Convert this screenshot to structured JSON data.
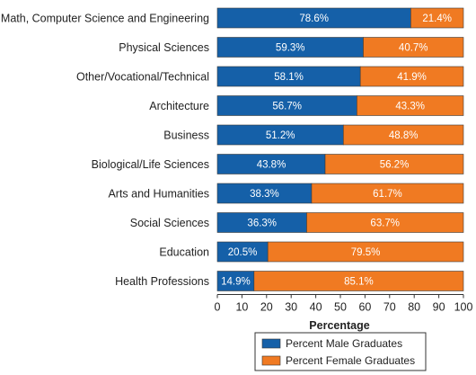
{
  "chart_data": {
    "type": "bar",
    "orientation": "horizontal",
    "stacked": true,
    "categories": [
      "Math, Computer Science and Engineering",
      "Physical Sciences",
      "Other/Vocational/Technical",
      "Architecture",
      "Business",
      "Biological/Life Sciences",
      "Arts and Humanities",
      "Social Sciences",
      "Education",
      "Health Professions"
    ],
    "series": [
      {
        "name": "Percent Male Graduates",
        "color": "#1560a8",
        "values": [
          78.6,
          59.3,
          58.1,
          56.7,
          51.2,
          43.8,
          38.3,
          36.3,
          20.5,
          14.9
        ],
        "labels": [
          "78.6%",
          "59.3%",
          "58.1%",
          "56.7%",
          "51.2%",
          "43.8%",
          "38.3%",
          "36.3%",
          "20.5%",
          "14.9%"
        ]
      },
      {
        "name": "Percent Female Graduates",
        "color": "#f07a22",
        "values": [
          21.4,
          40.7,
          41.9,
          43.3,
          48.8,
          56.2,
          61.7,
          63.7,
          79.5,
          85.1
        ],
        "labels": [
          "21.4%",
          "40.7%",
          "41.9%",
          "43.3%",
          "48.8%",
          "56.2%",
          "61.7%",
          "63.7%",
          "79.5%",
          "85.1%"
        ]
      }
    ],
    "xlabel": "Percentage",
    "ylabel": "",
    "xlim": [
      0,
      100
    ],
    "xticks": [
      "0",
      "10",
      "20",
      "30",
      "40",
      "50",
      "60",
      "70",
      "80",
      "90",
      "100"
    ],
    "grid": false,
    "legend_position": "bottom"
  }
}
